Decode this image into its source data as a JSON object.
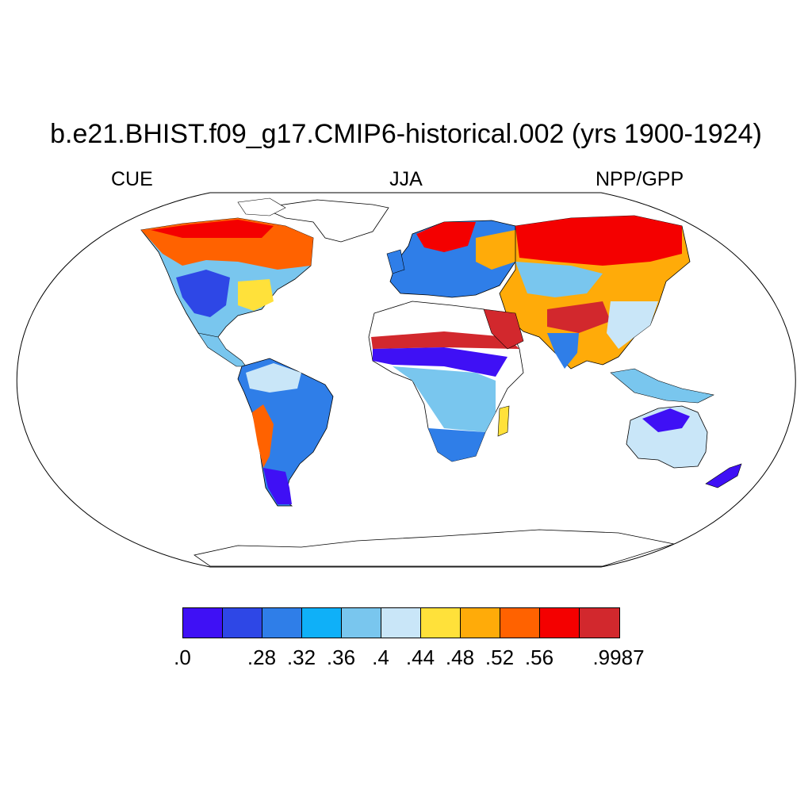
{
  "title": "b.e21.BHIST.f09_g17.CMIP6-historical.002 (yrs 1900-1924)",
  "subtitle_left": "CUE",
  "subtitle_center": "JJA",
  "subtitle_right": "NPP/GPP",
  "colorbar": {
    "colors": [
      "#3f10f5",
      "#2e47e6",
      "#2f7ee8",
      "#0fb0f8",
      "#79c6ee",
      "#c9e6f8",
      "#ffe13a",
      "#ffab09",
      "#ff6200",
      "#f40000",
      "#d2282d"
    ],
    "labels": [
      ".0",
      ".28",
      ".32",
      ".36",
      ".4",
      ".44",
      ".48",
      ".52",
      ".56",
      ".9987"
    ],
    "label_edges": [
      0,
      2,
      3,
      4,
      5,
      6,
      7,
      8,
      9,
      11
    ]
  }
}
